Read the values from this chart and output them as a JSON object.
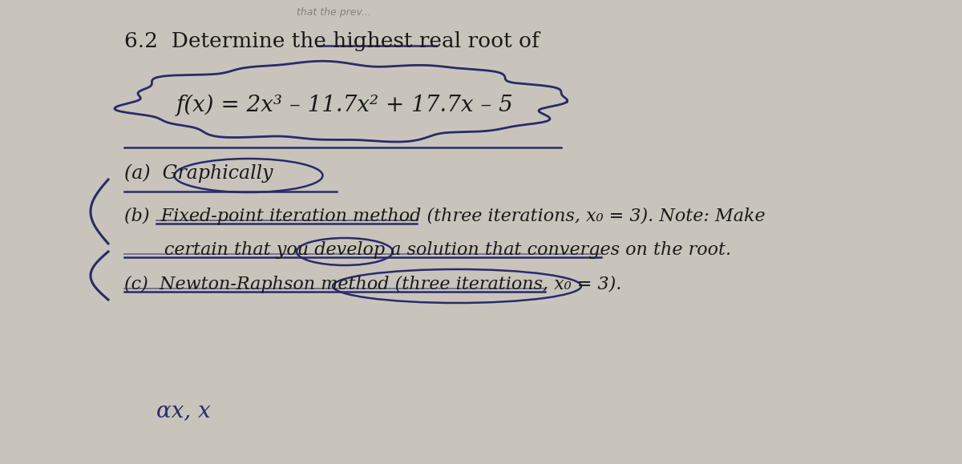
{
  "background_color": "#c8c4bc",
  "paper_color": "#e8e4dc",
  "text_color": "#1a1a1a",
  "ink_color": "#2a2a6a",
  "fig_width": 12.0,
  "fig_height": 5.79,
  "dpi": 100,
  "title": "6.2  Determine the highest real root of",
  "equation": "f(x) = 2x³ – 11.7x² + 17.7x – 5",
  "part_a": "(a)  Graphically",
  "part_b1": "(b)  Fixed-point iteration method (three iterations, x₀ = 3). Note: Make",
  "part_b2": "       certain that you develop a solution that converges on the root.",
  "part_c": "(c)  Newton-Raphson method (three iterations, x₀ = 3).",
  "bottom": "αx, x"
}
